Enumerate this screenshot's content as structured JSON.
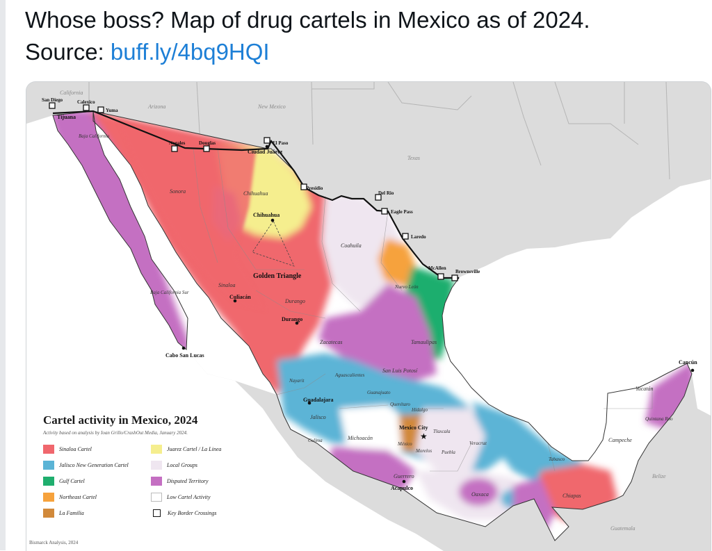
{
  "tweet": {
    "text": "Whose boss? Map of drug cartels in Mexico as of 2024.",
    "source_label": "Source:",
    "source_link": "buff.ly/4bq9HQI"
  },
  "map": {
    "legend_title": "Cartel activity in Mexico, 2024",
    "legend_subtitle": "Activity based on analysis by Ioan Grillo/CrashOut Media, January 2024.",
    "credit": "Bismarck Analysis, 2024",
    "legend": [
      {
        "label": "Sinaloa Cartel",
        "color": "#f0676d"
      },
      {
        "label": "Juarez Cartel / La Linea",
        "color": "#f5ee8e"
      },
      {
        "label": "Jalisco New Generation Cartel",
        "color": "#5bb4d6"
      },
      {
        "label": "Local Groups",
        "color": "#efe6f0"
      },
      {
        "label": "Gulf Cartel",
        "color": "#1fae6e"
      },
      {
        "label": "Disputed Territory",
        "color": "#c46fc2"
      },
      {
        "label": "Northeast Cartel",
        "color": "#f6a23c"
      },
      {
        "label": "Low Cartel Activity",
        "color": "#ffffff"
      },
      {
        "label": "La Familia",
        "color": "#d1893a"
      },
      {
        "label": "Key Border Crossings",
        "color": "#000000"
      }
    ],
    "us_states": [
      "California",
      "Arizona",
      "New Mexico",
      "Texas"
    ],
    "other_countries": [
      "Belize",
      "Guatemala"
    ],
    "mx_states": [
      "Baja California",
      "Sonora",
      "Chihuahua",
      "Coahuila",
      "Baja California Sur",
      "Sinaloa",
      "Durango",
      "Nuevo León",
      "Tamaulipas",
      "Zacatecas",
      "San Luis Potosí",
      "Nayarit",
      "Aguascalientes",
      "Guanajuato",
      "Querétaro",
      "Hidalgo",
      "Jalisco",
      "Colima",
      "Michoacán",
      "México",
      "Tlaxcala",
      "Morelos",
      "Puebla",
      "Veracruz",
      "Guerrero",
      "Oaxaca",
      "Tabasco",
      "Chiapas",
      "Campeche",
      "Yucatán",
      "Quintana Roo"
    ],
    "crossings": [
      "San Diego",
      "Calexico",
      "Yuma",
      "Nogales",
      "Douglas",
      "El Paso",
      "Presidio",
      "Del Rio",
      "Eagle Pass",
      "Laredo",
      "McAllen",
      "Brownsville"
    ],
    "cities": [
      "Tijuana",
      "Ciudad Juárez",
      "Chihuahua",
      "Culiacán",
      "Durango",
      "Cabo San Lucas",
      "Guadalajara",
      "Mexico City",
      "Acapulco",
      "Cancún"
    ],
    "annotation": "Golden Triangle"
  }
}
